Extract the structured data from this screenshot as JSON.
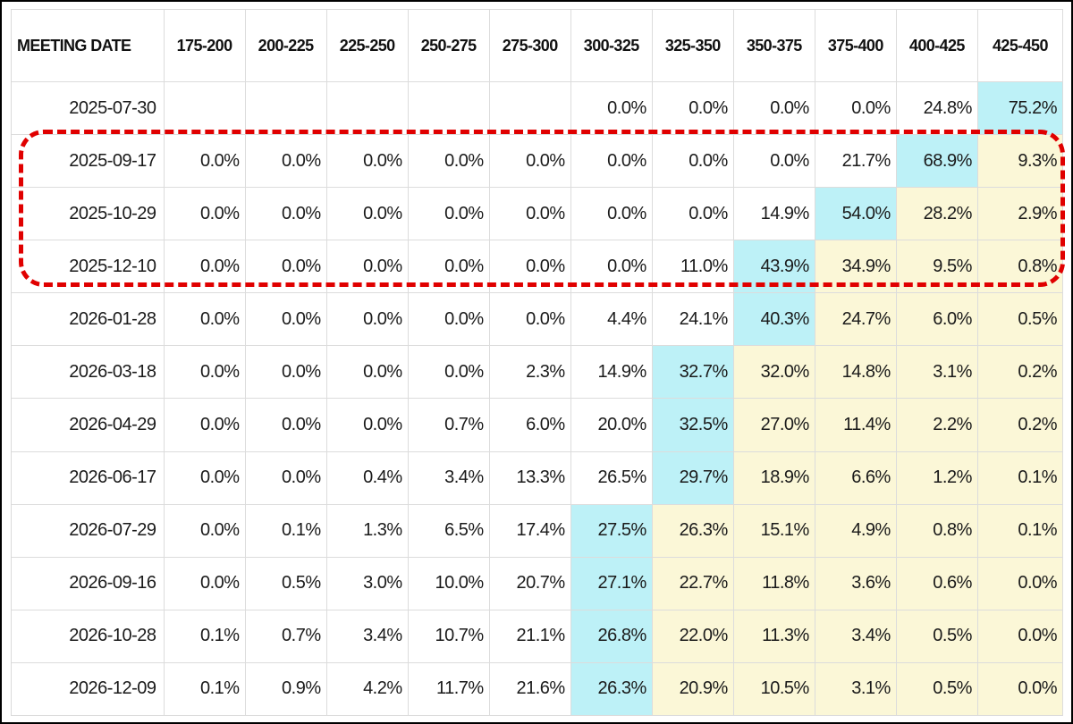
{
  "table": {
    "headers": [
      "MEETING DATE",
      "175-200",
      "200-225",
      "225-250",
      "250-275",
      "275-300",
      "300-325",
      "325-350",
      "350-375",
      "375-400",
      "400-425",
      "425-450"
    ],
    "rows": [
      {
        "date": "2025-07-30",
        "values": [
          "",
          "",
          "",
          "",
          "",
          "0.0%",
          "0.0%",
          "0.0%",
          "0.0%",
          "24.8%",
          "75.2%"
        ],
        "highlight_col": 10
      },
      {
        "date": "2025-09-17",
        "values": [
          "0.0%",
          "0.0%",
          "0.0%",
          "0.0%",
          "0.0%",
          "0.0%",
          "0.0%",
          "0.0%",
          "21.7%",
          "68.9%",
          "9.3%"
        ],
        "highlight_col": 9
      },
      {
        "date": "2025-10-29",
        "values": [
          "0.0%",
          "0.0%",
          "0.0%",
          "0.0%",
          "0.0%",
          "0.0%",
          "0.0%",
          "14.9%",
          "54.0%",
          "28.2%",
          "2.9%"
        ],
        "highlight_col": 8
      },
      {
        "date": "2025-12-10",
        "values": [
          "0.0%",
          "0.0%",
          "0.0%",
          "0.0%",
          "0.0%",
          "0.0%",
          "11.0%",
          "43.9%",
          "34.9%",
          "9.5%",
          "0.8%"
        ],
        "highlight_col": 7
      },
      {
        "date": "2026-01-28",
        "values": [
          "0.0%",
          "0.0%",
          "0.0%",
          "0.0%",
          "0.0%",
          "4.4%",
          "24.1%",
          "40.3%",
          "24.7%",
          "6.0%",
          "0.5%"
        ],
        "highlight_col": 7
      },
      {
        "date": "2026-03-18",
        "values": [
          "0.0%",
          "0.0%",
          "0.0%",
          "0.0%",
          "2.3%",
          "14.9%",
          "32.7%",
          "32.0%",
          "14.8%",
          "3.1%",
          "0.2%"
        ],
        "highlight_col": 6
      },
      {
        "date": "2026-04-29",
        "values": [
          "0.0%",
          "0.0%",
          "0.0%",
          "0.7%",
          "6.0%",
          "20.0%",
          "32.5%",
          "27.0%",
          "11.4%",
          "2.2%",
          "0.2%"
        ],
        "highlight_col": 6
      },
      {
        "date": "2026-06-17",
        "values": [
          "0.0%",
          "0.0%",
          "0.4%",
          "3.4%",
          "13.3%",
          "26.5%",
          "29.7%",
          "18.9%",
          "6.6%",
          "1.2%",
          "0.1%"
        ],
        "highlight_col": 6
      },
      {
        "date": "2026-07-29",
        "values": [
          "0.0%",
          "0.1%",
          "1.3%",
          "6.5%",
          "17.4%",
          "27.5%",
          "26.3%",
          "15.1%",
          "4.9%",
          "0.8%",
          "0.1%"
        ],
        "highlight_col": 5
      },
      {
        "date": "2026-09-16",
        "values": [
          "0.0%",
          "0.5%",
          "3.0%",
          "10.0%",
          "20.7%",
          "27.1%",
          "22.7%",
          "11.8%",
          "3.6%",
          "0.6%",
          "0.0%"
        ],
        "highlight_col": 5
      },
      {
        "date": "2026-10-28",
        "values": [
          "0.1%",
          "0.7%",
          "3.4%",
          "10.7%",
          "21.1%",
          "26.8%",
          "22.0%",
          "11.3%",
          "3.4%",
          "0.5%",
          "0.0%"
        ],
        "highlight_col": 5
      },
      {
        "date": "2026-12-09",
        "values": [
          "0.1%",
          "0.9%",
          "4.2%",
          "11.7%",
          "21.6%",
          "26.3%",
          "20.9%",
          "10.5%",
          "3.1%",
          "0.5%",
          "0.0%"
        ],
        "highlight_col": 5
      }
    ]
  },
  "colors": {
    "highlight": "#bdf1f7",
    "above_highlight": "#fbf7d7",
    "annotation": "#e00000"
  }
}
